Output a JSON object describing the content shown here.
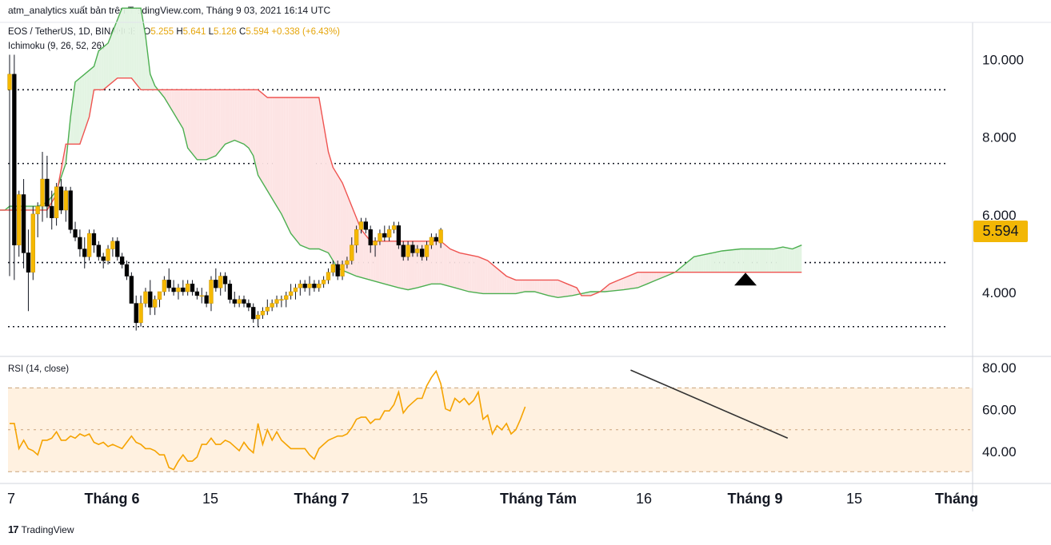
{
  "attribution": "atm_analytics xuất bản trên TradingView.com, Tháng 9 03, 2021 16:14 UTC",
  "legend": {
    "symbol": "EOS / TetherUS, 1D, BINANCE",
    "o_key": "O",
    "o_val": "5.255",
    "h_key": "H",
    "h_val": "5.641",
    "l_key": "L",
    "l_val": "5.126",
    "c_key": "C",
    "c_val": "5.594",
    "change": "+0.338 (+6.43%)",
    "indicator": "Ichimoku (9, 26, 52, 26)",
    "rsi": "RSI (14, close)"
  },
  "last_price": "5.594",
  "footer_logo": "TradingView",
  "colors": {
    "up": "#f5b800",
    "down": "#000000",
    "conversion": "#4caf50",
    "base": "#ef5350",
    "cloud_green": "#e3f4e3",
    "cloud_red": "#fde4e4",
    "rsi_line": "#f5a300",
    "rsi_band": "#fff1e0"
  },
  "chart_data": [
    {
      "type": "candlestick",
      "title": "",
      "y_ticks": [
        "4.000",
        "6.000",
        "8.000",
        "10.000"
      ],
      "x_ticks": [
        "7",
        "Tháng 6",
        "15",
        "Tháng 7",
        "15",
        "Tháng Tám",
        "16",
        "Tháng 9",
        "15",
        "Tháng"
      ],
      "ylim": [
        2.6,
        11.5
      ],
      "horizontal_levels": [
        9.2,
        7.3,
        4.75,
        3.1
      ],
      "candles_ohlc": [
        [
          9.2,
          10.1,
          4.4,
          9.6
        ],
        [
          9.6,
          10.1,
          4.3,
          5.2
        ],
        [
          5.2,
          6.6,
          4.9,
          6.5
        ],
        [
          6.5,
          6.9,
          4.6,
          5.0
        ],
        [
          5.0,
          5.6,
          3.5,
          4.5
        ],
        [
          4.5,
          6.2,
          4.3,
          6.0
        ],
        [
          6.0,
          6.3,
          5.4,
          6.2
        ],
        [
          6.2,
          7.6,
          5.8,
          6.9
        ],
        [
          6.9,
          7.5,
          5.9,
          6.2
        ],
        [
          6.2,
          6.6,
          5.6,
          5.9
        ],
        [
          5.9,
          6.8,
          5.7,
          6.7
        ],
        [
          6.7,
          6.9,
          6.0,
          6.1
        ],
        [
          6.1,
          6.7,
          5.8,
          6.6
        ],
        [
          6.6,
          6.7,
          5.5,
          5.6
        ],
        [
          5.6,
          5.8,
          5.3,
          5.4
        ],
        [
          5.4,
          5.6,
          4.9,
          5.1
        ],
        [
          5.1,
          5.4,
          4.6,
          4.9
        ],
        [
          4.9,
          5.6,
          4.8,
          5.5
        ],
        [
          5.5,
          5.6,
          5.0,
          5.2
        ],
        [
          5.2,
          5.3,
          4.8,
          4.9
        ],
        [
          4.9,
          5.0,
          4.6,
          4.8
        ],
        [
          4.8,
          5.2,
          4.7,
          5.1
        ],
        [
          5.1,
          5.4,
          4.9,
          5.3
        ],
        [
          5.3,
          5.4,
          4.8,
          4.9
        ],
        [
          4.9,
          5.0,
          4.6,
          4.7
        ],
        [
          4.7,
          4.8,
          4.3,
          4.4
        ],
        [
          4.4,
          4.5,
          3.7,
          3.7
        ],
        [
          3.7,
          3.9,
          3.0,
          3.2
        ],
        [
          3.2,
          3.9,
          3.1,
          3.7
        ],
        [
          3.7,
          4.1,
          3.6,
          4.0
        ],
        [
          4.0,
          4.3,
          3.4,
          3.6
        ],
        [
          3.6,
          3.9,
          3.4,
          3.8
        ],
        [
          3.8,
          4.0,
          3.6,
          4.0
        ],
        [
          4.0,
          4.4,
          3.9,
          4.3
        ],
        [
          4.3,
          4.6,
          4.0,
          4.1
        ],
        [
          4.1,
          4.3,
          3.9,
          4.0
        ],
        [
          4.0,
          4.2,
          3.8,
          4.1
        ],
        [
          4.1,
          4.3,
          3.9,
          4.0
        ],
        [
          4.0,
          4.3,
          3.9,
          4.2
        ],
        [
          4.2,
          4.3,
          3.9,
          4.0
        ],
        [
          4.0,
          4.1,
          3.8,
          3.9
        ],
        [
          3.9,
          4.1,
          3.7,
          3.9
        ],
        [
          3.9,
          4.0,
          3.6,
          3.7
        ],
        [
          3.7,
          4.4,
          3.5,
          4.3
        ],
        [
          4.3,
          4.6,
          4.0,
          4.1
        ],
        [
          4.1,
          4.5,
          3.9,
          4.4
        ],
        [
          4.4,
          4.5,
          4.0,
          4.2
        ],
        [
          4.2,
          4.3,
          3.7,
          3.8
        ],
        [
          3.8,
          4.0,
          3.6,
          3.7
        ],
        [
          3.7,
          3.9,
          3.6,
          3.8
        ],
        [
          3.8,
          3.9,
          3.6,
          3.7
        ],
        [
          3.7,
          3.8,
          3.5,
          3.6
        ],
        [
          3.6,
          3.7,
          3.2,
          3.3
        ],
        [
          3.3,
          3.5,
          3.1,
          3.4
        ],
        [
          3.4,
          3.6,
          3.3,
          3.5
        ],
        [
          3.5,
          3.8,
          3.4,
          3.6
        ],
        [
          3.6,
          3.8,
          3.5,
          3.7
        ],
        [
          3.7,
          3.9,
          3.6,
          3.8
        ],
        [
          3.8,
          3.9,
          3.6,
          3.8
        ],
        [
          3.8,
          4.0,
          3.6,
          3.9
        ],
        [
          3.9,
          4.2,
          3.8,
          4.0
        ],
        [
          4.0,
          4.2,
          3.8,
          4.1
        ],
        [
          4.1,
          4.3,
          3.9,
          4.2
        ],
        [
          4.2,
          4.3,
          4.0,
          4.1
        ],
        [
          4.1,
          4.4,
          3.9,
          4.2
        ],
        [
          4.2,
          4.3,
          4.0,
          4.1
        ],
        [
          4.1,
          4.3,
          4.0,
          4.2
        ],
        [
          4.2,
          4.4,
          4.1,
          4.3
        ],
        [
          4.3,
          4.6,
          4.2,
          4.5
        ],
        [
          4.5,
          4.8,
          4.4,
          4.7
        ],
        [
          4.7,
          4.8,
          4.3,
          4.4
        ],
        [
          4.4,
          4.8,
          4.3,
          4.7
        ],
        [
          4.7,
          4.9,
          4.6,
          4.8
        ],
        [
          4.8,
          5.4,
          4.7,
          5.2
        ],
        [
          5.2,
          5.7,
          5.0,
          5.6
        ],
        [
          5.6,
          5.9,
          5.5,
          5.8
        ],
        [
          5.8,
          5.9,
          5.5,
          5.6
        ],
        [
          5.6,
          5.7,
          5.0,
          5.2
        ],
        [
          5.2,
          5.4,
          4.9,
          5.3
        ],
        [
          5.3,
          5.6,
          5.2,
          5.5
        ],
        [
          5.5,
          5.7,
          5.3,
          5.4
        ],
        [
          5.4,
          5.7,
          5.3,
          5.6
        ],
        [
          5.6,
          5.8,
          5.5,
          5.7
        ],
        [
          5.7,
          5.8,
          5.1,
          5.2
        ],
        [
          5.2,
          5.3,
          4.8,
          4.9
        ],
        [
          4.9,
          5.3,
          4.8,
          5.2
        ],
        [
          5.2,
          5.3,
          4.9,
          5.0
        ],
        [
          5.0,
          5.2,
          4.9,
          5.1
        ],
        [
          5.1,
          5.2,
          4.8,
          4.9
        ],
        [
          4.9,
          5.3,
          4.8,
          5.2
        ],
        [
          5.2,
          5.5,
          5.1,
          5.4
        ],
        [
          5.4,
          5.5,
          5.2,
          5.3
        ],
        [
          5.255,
          5.641,
          5.126,
          5.594
        ]
      ],
      "ichimoku": {
        "conversion": [
          [
            -10,
            6.8
          ],
          [
            -9,
            6.4
          ],
          [
            -8,
            6.2
          ],
          [
            -7,
            6.2
          ],
          [
            -6,
            6.1
          ],
          [
            -5,
            6.1
          ],
          [
            -4,
            6.1
          ],
          [
            -3,
            6.1
          ],
          [
            -2,
            6.1
          ],
          [
            -1,
            6.1
          ],
          [
            0,
            6.2
          ],
          [
            2,
            6.2
          ],
          [
            6,
            6.2
          ],
          [
            8,
            6.3
          ],
          [
            10,
            6.6
          ],
          [
            12,
            7.3
          ],
          [
            13,
            8.5
          ],
          [
            14,
            9.4
          ],
          [
            16,
            9.6
          ],
          [
            18,
            9.8
          ],
          [
            19,
            10.2
          ],
          [
            21,
            10.4
          ],
          [
            22,
            10.7
          ],
          [
            24,
            11.3
          ],
          [
            26,
            11.3
          ],
          [
            28,
            11.3
          ],
          [
            29,
            10.6
          ],
          [
            30,
            9.6
          ],
          [
            31,
            9.3
          ],
          [
            33,
            9.0
          ],
          [
            35,
            8.6
          ],
          [
            37,
            8.2
          ],
          [
            38,
            7.7
          ],
          [
            40,
            7.4
          ],
          [
            42,
            7.4
          ],
          [
            44,
            7.5
          ],
          [
            46,
            7.8
          ],
          [
            48,
            7.9
          ],
          [
            50,
            7.8
          ],
          [
            51,
            7.7
          ],
          [
            52,
            7.5
          ],
          [
            53,
            7.0
          ],
          [
            55,
            6.6
          ],
          [
            57,
            6.2
          ],
          [
            58,
            6.0
          ],
          [
            60,
            5.5
          ],
          [
            62,
            5.2
          ],
          [
            64,
            5.1
          ],
          [
            66,
            5.1
          ],
          [
            68,
            5.0
          ],
          [
            70,
            4.6
          ],
          [
            72,
            4.5
          ],
          [
            74,
            4.4
          ],
          [
            77,
            4.3
          ],
          [
            80,
            4.2
          ],
          [
            83,
            4.1
          ],
          [
            85,
            4.05
          ],
          [
            87,
            4.1
          ],
          [
            90,
            4.2
          ],
          [
            92,
            4.2
          ],
          [
            95,
            4.1
          ],
          [
            98,
            4.0
          ],
          [
            101,
            3.95
          ],
          [
            105,
            3.95
          ],
          [
            108,
            3.95
          ],
          [
            110,
            4.0
          ],
          [
            112,
            4.0
          ],
          [
            115,
            3.9
          ],
          [
            117,
            3.85
          ],
          [
            120,
            3.9
          ],
          [
            124,
            4.0
          ],
          [
            127,
            4.0
          ],
          [
            131,
            4.05
          ],
          [
            134,
            4.1
          ],
          [
            136,
            4.2
          ],
          [
            138,
            4.3
          ],
          [
            140,
            4.4
          ],
          [
            142,
            4.5
          ],
          [
            144,
            4.7
          ],
          [
            146,
            4.9
          ],
          [
            148,
            4.95
          ],
          [
            150,
            5.0
          ],
          [
            152,
            5.05
          ],
          [
            156,
            5.1
          ],
          [
            160,
            5.1
          ],
          [
            163,
            5.1
          ],
          [
            165,
            5.15
          ],
          [
            167,
            5.1
          ],
          [
            169,
            5.2
          ]
        ],
        "base": [
          [
            -10,
            6.1
          ],
          [
            -8,
            6.1
          ],
          [
            -2,
            6.1
          ],
          [
            0,
            6.1
          ],
          [
            6,
            6.1
          ],
          [
            8,
            6.1
          ],
          [
            10,
            6.5
          ],
          [
            12,
            7.8
          ],
          [
            13,
            7.8
          ],
          [
            15,
            7.8
          ],
          [
            17,
            8.5
          ],
          [
            18,
            9.2
          ],
          [
            20,
            9.2
          ],
          [
            23,
            9.5
          ],
          [
            26,
            9.5
          ],
          [
            28,
            9.2
          ],
          [
            31,
            9.2
          ],
          [
            53,
            9.2
          ],
          [
            55,
            9.0
          ],
          [
            57,
            9.0
          ],
          [
            60,
            9.0
          ],
          [
            62,
            9.0
          ],
          [
            66,
            9.0
          ],
          [
            68,
            7.6
          ],
          [
            69,
            7.2
          ],
          [
            71,
            6.8
          ],
          [
            73,
            6.2
          ],
          [
            75,
            5.6
          ],
          [
            77,
            5.3
          ],
          [
            80,
            5.3
          ],
          [
            84,
            5.3
          ],
          [
            89,
            5.3
          ],
          [
            92,
            5.3
          ],
          [
            94,
            5.1
          ],
          [
            96,
            5.0
          ],
          [
            100,
            4.9
          ],
          [
            102,
            4.8
          ],
          [
            104,
            4.6
          ],
          [
            106,
            4.4
          ],
          [
            108,
            4.3
          ],
          [
            111,
            4.3
          ],
          [
            114,
            4.3
          ],
          [
            117,
            4.3
          ],
          [
            119,
            4.2
          ],
          [
            121,
            4.1
          ],
          [
            122,
            3.9
          ],
          [
            124,
            3.9
          ],
          [
            126,
            4.0
          ],
          [
            128,
            4.2
          ],
          [
            130,
            4.3
          ],
          [
            132,
            4.4
          ],
          [
            134,
            4.5
          ],
          [
            136,
            4.5
          ],
          [
            140,
            4.5
          ],
          [
            145,
            4.5
          ],
          [
            155,
            4.5
          ],
          [
            160,
            4.5
          ],
          [
            169,
            4.5
          ]
        ]
      }
    },
    {
      "type": "line",
      "title": "",
      "y_ticks": [
        "40.00",
        "60.00",
        "80.00"
      ],
      "ylim": [
        30,
        82
      ],
      "bands": [
        30,
        50,
        70
      ],
      "values": [
        53,
        53,
        41,
        45,
        41,
        40,
        38,
        45,
        45,
        46,
        49,
        45,
        45,
        47,
        46,
        48,
        47,
        48,
        44,
        43,
        44,
        42,
        43,
        42,
        41,
        44,
        47,
        44,
        43,
        41,
        41,
        40,
        38,
        38,
        32,
        31,
        35,
        38,
        35,
        35,
        37,
        43,
        43,
        46,
        43,
        43,
        45,
        44,
        42,
        40,
        44,
        41,
        39,
        53,
        43,
        50,
        45,
        49,
        45,
        43,
        41,
        41,
        41,
        41,
        38,
        36,
        41,
        43,
        45,
        46,
        47,
        47,
        48,
        51,
        55,
        56,
        56,
        53,
        55,
        55,
        59,
        59,
        62,
        68,
        58,
        61,
        63,
        65,
        65,
        71,
        75,
        78,
        72,
        60,
        59,
        65,
        63,
        65,
        62,
        64,
        68,
        55,
        57,
        48,
        52,
        50,
        53,
        48,
        50,
        55,
        61
      ]
    }
  ]
}
